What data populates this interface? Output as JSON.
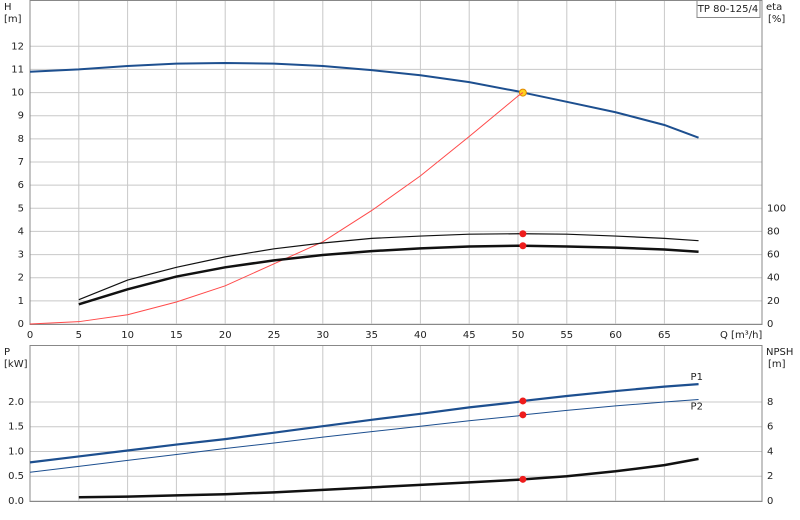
{
  "chart_data": [
    {
      "type": "line",
      "title": "TP 80-125/4",
      "y_label": "H",
      "y_unit": "[m]",
      "y2_label": "eta",
      "y2_unit": "[%]",
      "x_label": "Q [m³/h]",
      "x": [
        0,
        5,
        10,
        15,
        20,
        25,
        30,
        35,
        40,
        45,
        50,
        50.5,
        55,
        60,
        65,
        68.5
      ],
      "xlim": [
        0,
        75
      ],
      "xticks": [
        0,
        5,
        10,
        15,
        20,
        25,
        30,
        35,
        40,
        45,
        50,
        55,
        60,
        65
      ],
      "ylim": [
        0,
        14
      ],
      "yticks": [
        0,
        1,
        2,
        3,
        4,
        5,
        6,
        7,
        8,
        9,
        10,
        11,
        12
      ],
      "y2lim": [
        0,
        280
      ],
      "y2ticks": [
        0,
        20,
        40,
        60,
        80,
        100
      ],
      "grid": true,
      "show_xtick_labels": true,
      "marker_index": 11,
      "series": [
        {
          "color": "#1d4f8f",
          "width": 2,
          "marker_color": "#ffd21f",
          "values": [
            10.9,
            11.0,
            11.15,
            11.25,
            11.28,
            11.25,
            11.15,
            10.97,
            10.75,
            10.45,
            10.05,
            10.0,
            9.6,
            9.15,
            8.6,
            8.05
          ]
        },
        {
          "color": "#ff4a4a",
          "width": 1,
          "values": [
            0,
            0.1,
            0.4,
            0.95,
            1.65,
            2.6,
            3.55,
            4.9,
            6.4,
            8.1,
            9.85,
            10.0,
            null,
            null,
            null,
            null
          ]
        },
        {
          "color": "#111111",
          "width": 1.2,
          "axis": "y2",
          "marker_color": "#ee1c1c",
          "values": [
            null,
            21,
            38,
            49,
            58,
            65,
            70,
            74,
            76,
            77.6,
            78,
            78,
            77.6,
            76,
            74,
            72
          ]
        },
        {
          "color": "#111111",
          "width": 2.5,
          "axis": "y2",
          "marker_color": "#ee1c1c",
          "values": [
            null,
            17,
            30,
            41,
            49,
            55,
            59.6,
            63,
            65.4,
            67,
            67.6,
            67.6,
            67,
            66,
            64.4,
            62.4
          ]
        }
      ]
    },
    {
      "type": "line",
      "y_label": "P",
      "y_unit": "[kW]",
      "y2_label": "NPSH",
      "y2_unit": "[m]",
      "x": [
        0,
        5,
        10,
        15,
        20,
        25,
        30,
        35,
        40,
        45,
        50,
        50.5,
        55,
        60,
        65,
        68.5
      ],
      "xlim": [
        0,
        75
      ],
      "xticks": [
        0,
        5,
        10,
        15,
        20,
        25,
        30,
        35,
        40,
        45,
        50,
        55,
        60,
        65
      ],
      "ylim": [
        0,
        3.15
      ],
      "yticks": [
        {
          "value": 0,
          "label": "0.0"
        },
        0.5,
        {
          "value": 1,
          "label": "1.0"
        },
        1.5,
        {
          "value": 2,
          "label": "2.0"
        }
      ],
      "y2lim": [
        0,
        12.6
      ],
      "y2ticks": [
        0,
        2,
        4,
        6,
        8
      ],
      "grid": true,
      "show_xtick_labels": false,
      "marker_index": 11,
      "series": [
        {
          "name": "P1",
          "color": "#1d4f8f",
          "width": 2.2,
          "marker_color": "#ee1c1c",
          "values": [
            0.78,
            0.9,
            1.02,
            1.14,
            1.25,
            1.38,
            1.51,
            1.64,
            1.76,
            1.89,
            2.0,
            2.02,
            2.12,
            2.22,
            2.31,
            2.36
          ]
        },
        {
          "name": "P2",
          "color": "#1d4f8f",
          "width": 1,
          "marker_color": "#ee1c1c",
          "values": [
            0.58,
            0.7,
            0.82,
            0.94,
            1.06,
            1.17,
            1.29,
            1.4,
            1.51,
            1.62,
            1.72,
            1.74,
            1.83,
            1.92,
            2.0,
            2.05
          ]
        },
        {
          "color": "#111111",
          "width": 2.5,
          "axis": "y2",
          "marker_color": "#ee1c1c",
          "values": [
            null,
            0.3,
            0.35,
            0.45,
            0.55,
            0.7,
            0.9,
            1.1,
            1.3,
            1.5,
            1.72,
            1.75,
            2.0,
            2.4,
            2.9,
            3.4
          ]
        }
      ]
    }
  ]
}
